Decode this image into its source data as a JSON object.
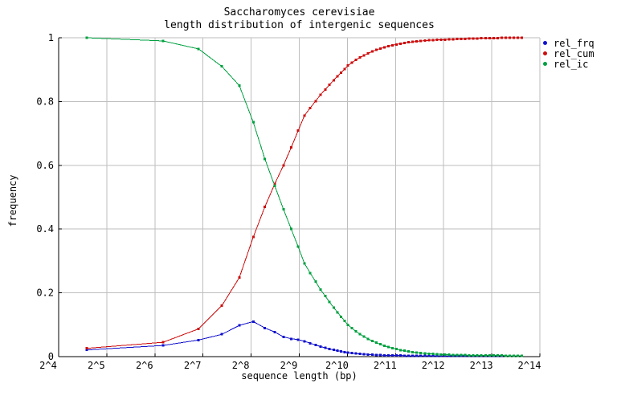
{
  "chart_data": {
    "type": "line",
    "title": "Saccharomyces cerevisiae",
    "subtitle": "length distribution of intergenic sequences",
    "xlabel": "sequence length (bp)",
    "ylabel": "frequency",
    "grid": true,
    "legend_position": "top-right-outside",
    "colors": {
      "grid": "#bebebe",
      "axis": "#000000",
      "background": "#ffffff"
    },
    "x_axis": {
      "scale": "log2",
      "log2_range": [
        4,
        14
      ],
      "tick_log2": [
        4,
        5,
        6,
        7,
        8,
        9,
        10,
        11,
        12,
        13,
        14
      ],
      "tick_labels": [
        "2^4",
        "2^5",
        "2^6",
        "2^7",
        "2^8",
        "2^9",
        "2^10",
        "2^11",
        "2^12",
        "2^13",
        "2^14"
      ]
    },
    "y_axis": {
      "range": [
        0,
        1
      ],
      "tick_values": [
        0,
        0.2,
        0.4,
        0.6,
        0.8,
        1
      ],
      "tick_labels": [
        "0",
        "0.2",
        "0.4",
        "0.6",
        "0.8",
        "1"
      ]
    },
    "x_bp": [
      24,
      72,
      120,
      168,
      216,
      264,
      312,
      360,
      408,
      456,
      504,
      552,
      600,
      648,
      696,
      744,
      792,
      840,
      888,
      936,
      984,
      1032,
      1094,
      1160,
      1229,
      1303,
      1381,
      1464,
      1552,
      1645,
      1744,
      1848,
      1959,
      2077,
      2201,
      2333,
      2473,
      2622,
      2779,
      2946,
      3123,
      3310,
      3509,
      3719,
      3942,
      4179,
      4430,
      4695,
      4977,
      5276,
      5592,
      5928,
      6284,
      6661,
      7060,
      7484,
      7933,
      8409,
      8914,
      9448,
      10015,
      10616,
      11253,
      11928,
      12644
    ],
    "series": [
      {
        "name": "rel_frq",
        "color": "#1111cc",
        "values": [
          0.021,
          0.035,
          0.052,
          0.07,
          0.098,
          0.11,
          0.09,
          0.077,
          0.062,
          0.056,
          0.0535,
          0.048,
          0.042,
          0.0365,
          0.0315,
          0.0275,
          0.024,
          0.021,
          0.0185,
          0.016,
          0.014,
          0.0125,
          0.011,
          0.0097,
          0.0085,
          0.0075,
          0.0066,
          0.0058,
          0.0051,
          0.0046,
          0.0042,
          0.0039,
          0.0036,
          0.0034,
          0.0032,
          0.0031,
          0.003,
          0.0029,
          0.0029,
          0.0028,
          0.0028,
          0.0027,
          0.0027,
          0.0026,
          0.0026,
          0.0026,
          0.0025,
          0.0025,
          0.0025,
          0.0025,
          0.0024,
          0.0024,
          0.0024,
          0.0024,
          0.0023,
          0.0023,
          0.0023,
          0.0023,
          0.0022,
          0.0022,
          0.0022,
          0.0022,
          0.0022,
          0.0021,
          0.0021
        ]
      },
      {
        "name": "rel_cum",
        "color": "#cc0d0d",
        "values": [
          0.026,
          0.045,
          0.087,
          0.16,
          0.248,
          0.375,
          0.47,
          0.542,
          0.6,
          0.656,
          0.7085,
          0.756,
          0.78,
          0.8015,
          0.8215,
          0.8375,
          0.853,
          0.867,
          0.8795,
          0.891,
          0.902,
          0.9125,
          0.922,
          0.931,
          0.938,
          0.945,
          0.951,
          0.957,
          0.962,
          0.966,
          0.97,
          0.9735,
          0.9765,
          0.9792,
          0.9816,
          0.9837,
          0.9856,
          0.9873,
          0.9887,
          0.9899,
          0.991,
          0.9919,
          0.9927,
          0.9933,
          0.9939,
          0.9943,
          0.9948,
          0.9953,
          0.9958,
          0.9963,
          0.9968,
          0.9972,
          0.9976,
          0.998,
          0.9983,
          0.9986,
          0.9989,
          0.9991,
          0.9993,
          0.9995,
          0.9996,
          0.9997,
          0.9998,
          0.9999,
          0.9999
        ]
      },
      {
        "name": "rel_ic",
        "color": "#00a040",
        "values": [
          1.0,
          0.99,
          0.965,
          0.91,
          0.85,
          0.735,
          0.62,
          0.535,
          0.462,
          0.4,
          0.345,
          0.292,
          0.262,
          0.235,
          0.21,
          0.19,
          0.171,
          0.154,
          0.139,
          0.125,
          0.112,
          0.1,
          0.089,
          0.079,
          0.0705,
          0.0625,
          0.0555,
          0.049,
          0.0435,
          0.0385,
          0.034,
          0.03,
          0.0265,
          0.0235,
          0.0207,
          0.0183,
          0.0162,
          0.0143,
          0.0127,
          0.0113,
          0.0101,
          0.0091,
          0.0082,
          0.0075,
          0.0068,
          0.0063,
          0.0058,
          0.0054,
          0.0051,
          0.0048,
          0.0045,
          0.0043,
          0.0041,
          0.0039,
          0.0038,
          0.0036,
          0.0035,
          0.0034,
          0.0033,
          0.0032,
          0.0031,
          0.0031,
          0.003,
          0.003,
          0.0029
        ]
      }
    ]
  }
}
